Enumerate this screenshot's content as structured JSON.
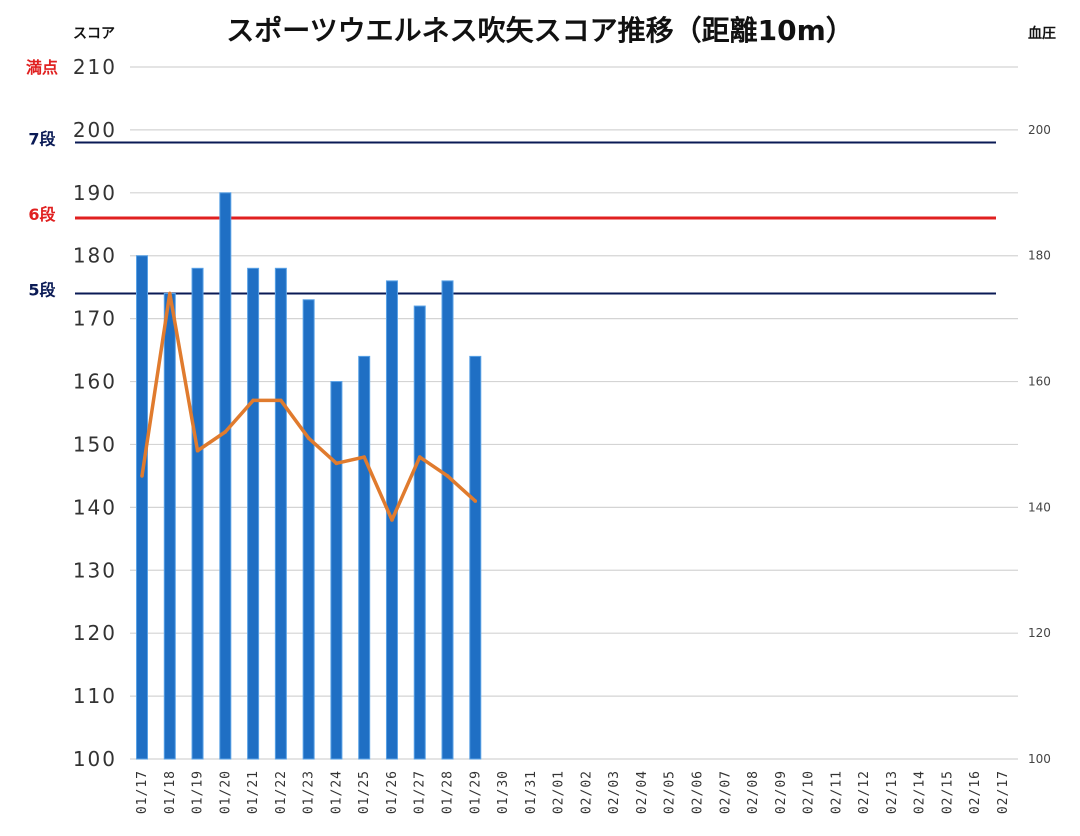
{
  "chart_data": {
    "type": "bar",
    "title": "スポーツウエルネス吹矢スコア推移（距離10m）",
    "ylabel_left": "スコア",
    "ylabel_right": "血圧",
    "ylim_left": [
      100,
      210
    ],
    "ylim_right": [
      100,
      210
    ],
    "yticks_left": [
      "100",
      "110",
      "120",
      "130",
      "140",
      "150",
      "160",
      "170",
      "180",
      "190",
      "200",
      "210"
    ],
    "yticks_right": [
      "100",
      "120",
      "140",
      "160",
      "180",
      "200"
    ],
    "categories": [
      "01/17",
      "01/18",
      "01/19",
      "01/20",
      "01/21",
      "01/22",
      "01/23",
      "01/24",
      "01/25",
      "01/26",
      "01/27",
      "01/28",
      "01/29",
      "01/30",
      "01/31",
      "02/01",
      "02/02",
      "02/03",
      "02/04",
      "02/05",
      "02/06",
      "02/07",
      "02/08",
      "02/09",
      "02/10",
      "02/11",
      "02/12",
      "02/13",
      "02/14",
      "02/15",
      "02/16",
      "02/17"
    ],
    "series": [
      {
        "kind": "bar",
        "axis": "left",
        "color": "#1f6fc4",
        "values": [
          180,
          174,
          178,
          190,
          178,
          178,
          173,
          160,
          164,
          176,
          172,
          176,
          164,
          null,
          null,
          null,
          null,
          null,
          null,
          null,
          null,
          null,
          null,
          null,
          null,
          null,
          null,
          null,
          null,
          null,
          null,
          null
        ]
      },
      {
        "kind": "line",
        "axis": "right",
        "color": "#e07b2e",
        "values": [
          145,
          174,
          149,
          152,
          157,
          157,
          151,
          147,
          148,
          138,
          148,
          145,
          141,
          null,
          null,
          null,
          null,
          null,
          null,
          null,
          null,
          null,
          null,
          null,
          null,
          null,
          null,
          null,
          null,
          null,
          null,
          null
        ]
      }
    ],
    "reference_lines": [
      {
        "label": "満点",
        "value": 210,
        "color": "#e02020",
        "line": false
      },
      {
        "label": "7段",
        "value": 198,
        "color": "#0a1a55",
        "line": true
      },
      {
        "label": "6段",
        "value": 186,
        "color": "#e02020",
        "line": true
      },
      {
        "label": "5段",
        "value": 174,
        "color": "#0a1a55",
        "line": true
      }
    ],
    "grid": true
  }
}
